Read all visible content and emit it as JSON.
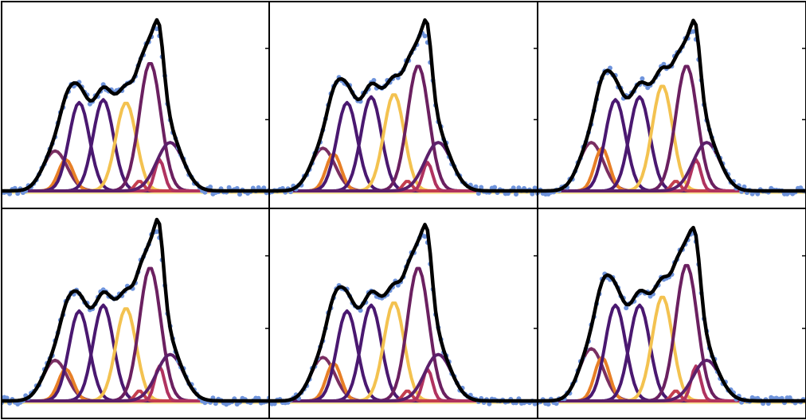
{
  "chart_data": {
    "type": "line",
    "layout": {
      "rows": 2,
      "cols": 3
    },
    "grid": false,
    "legend": "none",
    "title": "",
    "xlabel": "",
    "ylabel": "",
    "xlim": [
      0,
      100
    ],
    "ylim": [
      0,
      1.25
    ],
    "x_step": 1,
    "colors": {
      "data_points": "#6f94dc",
      "fit": "#000000",
      "baseline": "#fbe7a1",
      "axes": "#000000"
    },
    "components": [
      {
        "role": "peak",
        "color": "#7a2e62",
        "center": 20.0,
        "width": 4.5
      },
      {
        "role": "peak",
        "color": "#e77f26",
        "center": 24.0,
        "width": 2.8
      },
      {
        "role": "peak",
        "color": "#4a1870",
        "center": 29.0,
        "width": 3.8
      },
      {
        "role": "peak",
        "color": "#4a1870",
        "center": 38.0,
        "width": 3.8
      },
      {
        "role": "peak",
        "color": "#f3c250",
        "center": 46.5,
        "width": 3.8
      },
      {
        "role": "peak",
        "color": "#c43f4e",
        "center": 51.5,
        "width": 1.6
      },
      {
        "role": "peak",
        "color": "#6b2060",
        "center": 55.5,
        "width": 4.0
      },
      {
        "role": "peak",
        "color": "#b0335f",
        "center": 59.0,
        "width": 1.8
      },
      {
        "role": "peak",
        "color": "#5c1f6a",
        "center": 63.0,
        "width": 5.0
      }
    ],
    "panels": [
      {
        "amplitudes": [
          0.28,
          0.22,
          0.62,
          0.64,
          0.62,
          0.07,
          0.9,
          0.22,
          0.34
        ],
        "fit_peak": 1.22,
        "seed": 11
      },
      {
        "amplitudes": [
          0.3,
          0.26,
          0.62,
          0.66,
          0.68,
          0.07,
          0.88,
          0.2,
          0.34
        ],
        "fit_peak": 1.23,
        "seed": 23
      },
      {
        "amplitudes": [
          0.34,
          0.3,
          0.64,
          0.66,
          0.74,
          0.07,
          0.88,
          0.22,
          0.34
        ],
        "fit_peak": 1.22,
        "seed": 37
      },
      {
        "amplitudes": [
          0.28,
          0.22,
          0.62,
          0.66,
          0.64,
          0.07,
          0.92,
          0.24,
          0.32
        ],
        "fit_peak": 1.28,
        "seed": 41
      },
      {
        "amplitudes": [
          0.3,
          0.26,
          0.62,
          0.66,
          0.68,
          0.07,
          0.92,
          0.22,
          0.32
        ],
        "fit_peak": 1.24,
        "seed": 53
      },
      {
        "amplitudes": [
          0.36,
          0.3,
          0.66,
          0.66,
          0.72,
          0.07,
          0.94,
          0.24,
          0.28
        ],
        "fit_peak": 1.21,
        "seed": 67
      }
    ]
  }
}
